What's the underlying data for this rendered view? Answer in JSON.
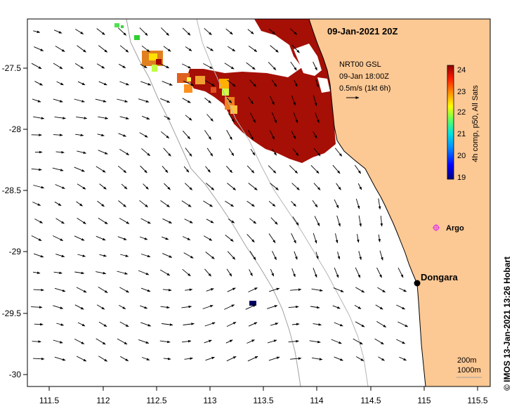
{
  "map": {
    "title": "09-Jan-2021 20Z",
    "x_ticks": [
      "111.5",
      "112",
      "112.5",
      "113",
      "113.5",
      "114",
      "114.5",
      "115",
      "115.5"
    ],
    "y_ticks": [
      "-27.5",
      "-28",
      "-28.5",
      "-29",
      "-29.5",
      "-30"
    ],
    "xlim": [
      111.3,
      115.6
    ],
    "ylim": [
      -30.1,
      -27.1
    ]
  },
  "current_legend": {
    "line1": "NRT00 GSL",
    "line2": "09-Jan 18:00Z",
    "line3": "0.5m/s (1kt 6h)"
  },
  "colorbar": {
    "labels": [
      "24",
      "23",
      "22",
      "21",
      "20",
      "19"
    ],
    "caption": "4h comp, p50, All Sats",
    "colors": [
      "#00007f",
      "#0000ff",
      "#0080ff",
      "#00ffff",
      "#80ff80",
      "#ffff00",
      "#ff8000",
      "#ff0000",
      "#a00000"
    ]
  },
  "places": {
    "argo": "Argo",
    "dongara": "Dongara"
  },
  "isobaths": {
    "line1": "200m",
    "line2": "1000m"
  },
  "credit": "©  IMOS 13-Jan-2021 13:26 Hobart",
  "colors": {
    "land": "#fcc894",
    "warm_sst": "#a50f05",
    "argo": "#e040e0"
  }
}
